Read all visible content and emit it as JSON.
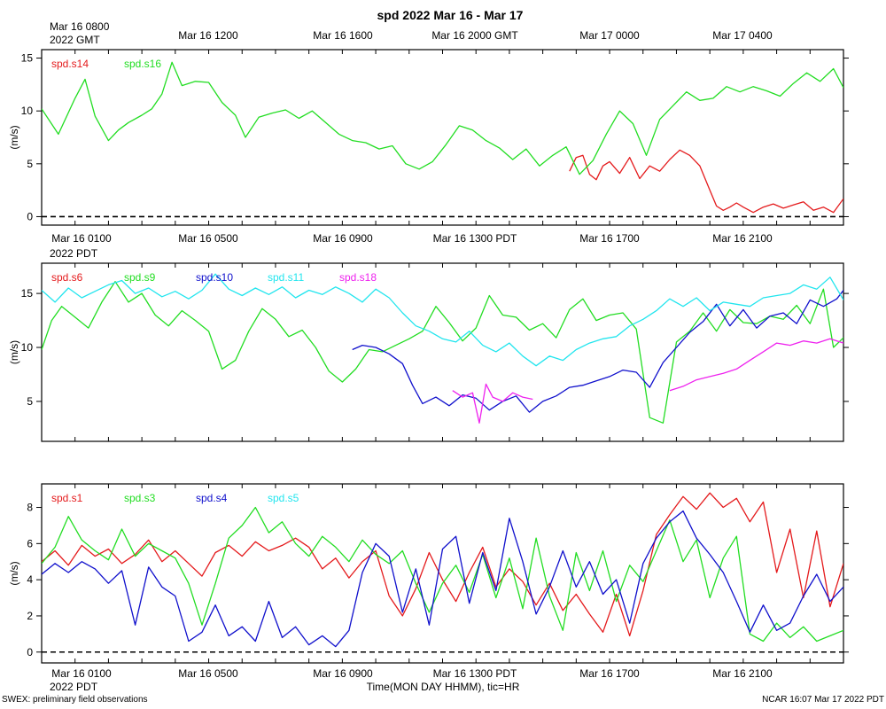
{
  "title": "spd 2022 Mar 16 - Mar 17",
  "footer_left": "SWEX: preliminary field observations",
  "footer_right": "NCAR 16:07 Mar 17 2022 PDT",
  "xlabel": "Time(MON DAY HHMM), tic=HR",
  "top_time_labels": {
    "corner_date": "Mar 16 0800",
    "corner_zone": "2022 GMT",
    "ticks": [
      "Mar 16 1200",
      "Mar 16 1600",
      "Mar 16 2000 GMT",
      "Mar 17 0000",
      "Mar 17 0400"
    ]
  },
  "pdt_time_labels": {
    "corner_zone": "2022 PDT",
    "ticks": [
      "Mar 16 0100",
      "Mar 16 0500",
      "Mar 16 0900",
      "Mar 16 1300 PDT",
      "Mar 16 1700",
      "Mar 16 2100"
    ]
  },
  "colors": {
    "red": "#e41a1c",
    "green": "#22dd22",
    "blue": "#1010cc",
    "cyan": "#22e5ee",
    "magenta": "#ee22ee"
  },
  "chart_data": [
    {
      "type": "line",
      "ylabel": "(m/s)",
      "ylim": [
        -0.8,
        15.8
      ],
      "yticks": [
        0,
        5,
        10,
        15
      ],
      "xlim": [
        0,
        24
      ],
      "zero_line": true,
      "series": [
        {
          "name": "spd.s14",
          "color": "red",
          "x": [
            15.8,
            16.0,
            16.2,
            16.4,
            16.6,
            16.8,
            17.0,
            17.3,
            17.6,
            17.9,
            18.2,
            18.5,
            18.8,
            19.1,
            19.4,
            19.7,
            20.0,
            20.2,
            20.4,
            20.6,
            20.8,
            21.0,
            21.3,
            21.6,
            21.9,
            22.2,
            22.5,
            22.8,
            23.1,
            23.4,
            23.7,
            24.0
          ],
          "values": [
            4.3,
            5.6,
            5.8,
            4.0,
            3.5,
            4.8,
            5.2,
            4.1,
            5.6,
            3.6,
            4.8,
            4.3,
            5.4,
            6.3,
            5.8,
            4.8,
            2.5,
            1.0,
            0.6,
            0.9,
            1.3,
            0.9,
            0.4,
            0.9,
            1.2,
            0.8,
            1.1,
            1.4,
            0.6,
            0.9,
            0.4,
            1.7
          ]
        },
        {
          "name": "spd.s16",
          "color": "green",
          "x": [
            0,
            0.5,
            1.0,
            1.3,
            1.6,
            2.0,
            2.3,
            2.6,
            3.0,
            3.3,
            3.6,
            3.9,
            4.2,
            4.6,
            5.0,
            5.4,
            5.8,
            6.1,
            6.5,
            6.9,
            7.3,
            7.7,
            8.1,
            8.5,
            8.9,
            9.3,
            9.7,
            10.1,
            10.5,
            10.9,
            11.3,
            11.7,
            12.1,
            12.5,
            12.9,
            13.3,
            13.7,
            14.1,
            14.5,
            14.9,
            15.3,
            15.7,
            16.1,
            16.5,
            16.9,
            17.3,
            17.7,
            18.1,
            18.5,
            18.9,
            19.3,
            19.7,
            20.1,
            20.5,
            20.9,
            21.3,
            21.7,
            22.1,
            22.5,
            22.9,
            23.3,
            23.7,
            24.0
          ],
          "values": [
            10.2,
            7.8,
            11.2,
            13.0,
            9.5,
            7.2,
            8.2,
            8.9,
            9.6,
            10.2,
            11.6,
            14.6,
            12.4,
            12.8,
            12.7,
            10.8,
            9.6,
            7.5,
            9.4,
            9.8,
            10.1,
            9.3,
            10.0,
            8.9,
            7.8,
            7.2,
            7.0,
            6.4,
            6.7,
            5.0,
            4.5,
            5.2,
            6.8,
            8.6,
            8.2,
            7.2,
            6.5,
            5.4,
            6.4,
            4.8,
            5.8,
            6.6,
            4.0,
            5.3,
            7.8,
            10.0,
            8.8,
            5.8,
            9.2,
            10.5,
            11.8,
            11.0,
            11.2,
            12.3,
            11.8,
            12.3,
            11.9,
            11.4,
            12.6,
            13.6,
            12.8,
            14.0,
            12.2
          ]
        }
      ]
    },
    {
      "type": "line",
      "ylabel": "(m/s)",
      "ylim": [
        1.3,
        17.8
      ],
      "yticks": [
        5,
        10,
        15
      ],
      "xlim": [
        0,
        24
      ],
      "zero_line": false,
      "series": [
        {
          "name": "spd.s6",
          "color": "red",
          "x": [],
          "values": []
        },
        {
          "name": "spd.s9",
          "color": "green",
          "x": [
            0,
            0.3,
            0.6,
            1.0,
            1.4,
            1.8,
            2.2,
            2.6,
            3.0,
            3.4,
            3.8,
            4.2,
            4.6,
            5.0,
            5.4,
            5.8,
            6.2,
            6.6,
            7.0,
            7.4,
            7.8,
            8.2,
            8.6,
            9.0,
            9.4,
            9.8,
            10.2,
            10.6,
            11.0,
            11.4,
            11.8,
            12.2,
            12.6,
            13.0,
            13.4,
            13.8,
            14.2,
            14.6,
            15.0,
            15.4,
            15.8,
            16.2,
            16.6,
            17.0,
            17.4,
            17.8,
            18.2,
            18.6,
            19.0,
            19.4,
            19.8,
            20.2,
            20.6,
            21.0,
            21.4,
            21.8,
            22.2,
            22.6,
            23.0,
            23.4,
            23.7,
            24.0
          ],
          "values": [
            9.8,
            12.5,
            13.8,
            12.8,
            11.8,
            14.2,
            16.1,
            14.2,
            15.0,
            13.0,
            12.0,
            13.4,
            12.5,
            11.5,
            8.0,
            8.8,
            11.5,
            13.6,
            12.6,
            11.0,
            11.6,
            10.0,
            7.8,
            6.8,
            8.0,
            9.8,
            9.6,
            10.2,
            10.8,
            11.5,
            13.8,
            12.3,
            10.6,
            11.8,
            14.8,
            13.0,
            12.8,
            11.6,
            12.2,
            10.9,
            13.5,
            14.5,
            12.5,
            13.0,
            13.2,
            11.7,
            3.5,
            3.0,
            10.5,
            11.5,
            13.2,
            11.5,
            13.5,
            12.3,
            12.2,
            12.9,
            12.6,
            13.9,
            12.2,
            15.4,
            10.0,
            10.9
          ]
        },
        {
          "name": "spd.s10",
          "color": "blue",
          "x": [
            9.3,
            9.6,
            10.0,
            10.4,
            10.8,
            11.1,
            11.4,
            11.8,
            12.2,
            12.6,
            13.0,
            13.4,
            13.8,
            14.2,
            14.6,
            15.0,
            15.4,
            15.8,
            16.2,
            16.6,
            17.0,
            17.4,
            17.8,
            18.2,
            18.6,
            19.0,
            19.4,
            19.8,
            20.2,
            20.6,
            21.0,
            21.4,
            21.8,
            22.2,
            22.6,
            23.0,
            23.4,
            23.8,
            24.0
          ],
          "values": [
            9.8,
            10.2,
            10.0,
            9.4,
            8.5,
            6.5,
            4.8,
            5.4,
            4.6,
            5.6,
            5.3,
            4.2,
            5.0,
            5.5,
            4.0,
            5.0,
            5.5,
            6.3,
            6.5,
            6.9,
            7.3,
            7.9,
            7.7,
            6.3,
            8.6,
            10.0,
            11.4,
            12.4,
            14.0,
            12.0,
            13.5,
            11.8,
            12.9,
            13.2,
            12.2,
            14.4,
            13.8,
            14.5,
            15.3
          ]
        },
        {
          "name": "spd.s11",
          "color": "cyan",
          "x": [
            0,
            0.4,
            0.8,
            1.2,
            1.6,
            2.0,
            2.4,
            2.8,
            3.2,
            3.6,
            4.0,
            4.4,
            4.8,
            5.2,
            5.6,
            6.0,
            6.4,
            6.8,
            7.2,
            7.6,
            8.0,
            8.4,
            8.8,
            9.2,
            9.6,
            10.0,
            10.4,
            10.8,
            11.2,
            11.6,
            12.0,
            12.4,
            12.8,
            13.2,
            13.6,
            14.0,
            14.4,
            14.8,
            15.2,
            15.6,
            16.0,
            16.4,
            16.8,
            17.2,
            17.6,
            18.0,
            18.4,
            18.8,
            19.2,
            19.6,
            20.0,
            20.4,
            20.8,
            21.2,
            21.6,
            22.0,
            22.4,
            22.8,
            23.2,
            23.6,
            24.0
          ],
          "values": [
            15.3,
            14.2,
            15.5,
            14.6,
            15.2,
            15.8,
            16.2,
            15.0,
            15.5,
            14.7,
            15.2,
            14.5,
            15.3,
            16.8,
            15.4,
            14.8,
            15.5,
            14.9,
            15.6,
            14.6,
            15.3,
            14.9,
            15.6,
            15.0,
            14.2,
            15.4,
            14.6,
            13.2,
            12.0,
            11.5,
            10.8,
            10.5,
            11.5,
            10.2,
            9.6,
            10.4,
            9.2,
            8.3,
            9.2,
            8.8,
            9.8,
            10.4,
            10.8,
            11.0,
            12.0,
            12.6,
            13.4,
            14.5,
            13.8,
            14.6,
            13.4,
            14.2,
            14.0,
            13.8,
            14.6,
            14.8,
            15.0,
            15.8,
            15.4,
            16.5,
            14.4
          ]
        },
        {
          "name": "spd.s18",
          "color": "magenta",
          "x": [
            12.3,
            12.6,
            12.9,
            13.1,
            13.3,
            13.5,
            13.8,
            14.1,
            14.4,
            14.7,
            18.8,
            19.2,
            19.6,
            20.0,
            20.4,
            20.8,
            21.2,
            21.6,
            22.0,
            22.4,
            22.8,
            23.2,
            23.6,
            24.0
          ],
          "values": [
            6.0,
            5.4,
            5.8,
            3.0,
            6.6,
            5.4,
            5.0,
            5.8,
            5.4,
            5.2,
            6.0,
            6.4,
            7.0,
            7.3,
            7.6,
            8.0,
            8.8,
            9.6,
            10.4,
            10.2,
            10.6,
            10.4,
            10.8,
            10.4
          ]
        }
      ]
    },
    {
      "type": "line",
      "ylabel": "(m/s)",
      "ylim": [
        -0.6,
        9.3
      ],
      "yticks": [
        0,
        2,
        4,
        6,
        8
      ],
      "xlim": [
        0,
        24
      ],
      "zero_line": true,
      "series": [
        {
          "name": "spd.s1",
          "color": "red",
          "x": [
            0,
            0.4,
            0.8,
            1.2,
            1.6,
            2.0,
            2.4,
            2.8,
            3.2,
            3.6,
            4.0,
            4.4,
            4.8,
            5.2,
            5.6,
            6.0,
            6.4,
            6.8,
            7.2,
            7.6,
            8.0,
            8.4,
            8.8,
            9.2,
            9.6,
            10.0,
            10.4,
            10.8,
            11.2,
            11.6,
            12.0,
            12.4,
            12.8,
            13.2,
            13.6,
            14.0,
            14.4,
            14.8,
            15.2,
            15.6,
            16.0,
            16.4,
            16.8,
            17.2,
            17.6,
            18.0,
            18.4,
            18.8,
            19.2,
            19.6,
            20.0,
            20.4,
            20.8,
            21.2,
            21.6,
            22.0,
            22.4,
            22.8,
            23.2,
            23.6,
            24.0
          ],
          "values": [
            5.0,
            5.6,
            4.8,
            5.9,
            5.3,
            5.7,
            4.9,
            5.4,
            6.2,
            5.0,
            5.6,
            4.9,
            4.2,
            5.5,
            5.9,
            5.3,
            6.1,
            5.6,
            5.9,
            6.3,
            5.8,
            4.6,
            5.2,
            4.1,
            5.0,
            5.6,
            3.1,
            2.0,
            3.5,
            5.5,
            4.0,
            2.8,
            4.4,
            5.8,
            3.6,
            4.6,
            3.9,
            2.6,
            3.8,
            2.3,
            3.2,
            2.1,
            1.1,
            3.2,
            0.9,
            3.4,
            6.5,
            7.6,
            8.6,
            7.9,
            8.8,
            8.0,
            8.5,
            7.2,
            8.3,
            4.4,
            6.8,
            3.0,
            6.7,
            2.5,
            4.9
          ]
        },
        {
          "name": "spd.s3",
          "color": "green",
          "x": [
            0,
            0.4,
            0.8,
            1.2,
            1.6,
            2.0,
            2.4,
            2.8,
            3.2,
            3.6,
            4.0,
            4.4,
            4.8,
            5.2,
            5.6,
            6.0,
            6.4,
            6.8,
            7.2,
            7.6,
            8.0,
            8.4,
            8.8,
            9.2,
            9.6,
            10.0,
            10.4,
            10.8,
            11.2,
            11.6,
            12.0,
            12.4,
            12.8,
            13.2,
            13.6,
            14.0,
            14.4,
            14.8,
            15.2,
            15.6,
            16.0,
            16.4,
            16.8,
            17.2,
            17.6,
            18.0,
            18.4,
            18.8,
            19.2,
            19.6,
            20.0,
            20.4,
            20.8,
            21.2,
            21.6,
            22.0,
            22.4,
            22.8,
            23.2,
            23.6,
            24.0
          ],
          "values": [
            4.9,
            5.8,
            7.5,
            6.2,
            5.6,
            5.1,
            6.8,
            5.3,
            6.0,
            5.6,
            5.2,
            3.8,
            1.5,
            3.8,
            6.3,
            7.0,
            8.0,
            6.6,
            7.2,
            6.0,
            5.3,
            6.4,
            5.8,
            5.0,
            6.2,
            5.4,
            4.9,
            5.6,
            3.8,
            2.2,
            3.8,
            4.8,
            3.3,
            5.4,
            3.0,
            5.2,
            2.4,
            6.3,
            3.1,
            1.2,
            5.5,
            3.4,
            5.6,
            2.8,
            4.8,
            3.9,
            5.6,
            7.3,
            5.0,
            6.2,
            3.0,
            5.2,
            6.4,
            1.0,
            0.6,
            1.6,
            0.8,
            1.4,
            0.6,
            0.9,
            1.2
          ]
        },
        {
          "name": "spd.s4",
          "color": "blue",
          "x": [
            0,
            0.4,
            0.8,
            1.2,
            1.6,
            2.0,
            2.4,
            2.8,
            3.2,
            3.6,
            4.0,
            4.4,
            4.8,
            5.2,
            5.6,
            6.0,
            6.4,
            6.8,
            7.2,
            7.6,
            8.0,
            8.4,
            8.8,
            9.2,
            9.6,
            10.0,
            10.4,
            10.8,
            11.2,
            11.6,
            12.0,
            12.4,
            12.8,
            13.2,
            13.6,
            14.0,
            14.4,
            14.8,
            15.2,
            15.6,
            16.0,
            16.4,
            16.8,
            17.2,
            17.6,
            18.0,
            18.4,
            18.8,
            19.2,
            19.6,
            20.0,
            20.4,
            20.8,
            21.2,
            21.6,
            22.0,
            22.4,
            22.8,
            23.2,
            23.6,
            24.0
          ],
          "values": [
            4.3,
            4.9,
            4.4,
            5.0,
            4.6,
            3.8,
            4.5,
            1.5,
            4.7,
            3.6,
            3.1,
            0.6,
            1.1,
            2.6,
            0.9,
            1.4,
            0.6,
            2.8,
            0.8,
            1.4,
            0.4,
            0.9,
            0.3,
            1.2,
            4.4,
            6.0,
            5.3,
            2.2,
            4.6,
            1.5,
            5.7,
            6.4,
            2.7,
            5.5,
            3.4,
            7.4,
            5.0,
            2.1,
            3.6,
            5.6,
            3.6,
            5.0,
            3.2,
            4.0,
            1.6,
            4.9,
            6.3,
            7.2,
            7.8,
            6.3,
            5.4,
            4.4,
            2.8,
            1.1,
            2.6,
            1.2,
            1.6,
            3.1,
            4.3,
            2.8,
            3.6
          ]
        },
        {
          "name": "spd.s5",
          "color": "cyan",
          "x": [],
          "values": []
        }
      ]
    }
  ]
}
